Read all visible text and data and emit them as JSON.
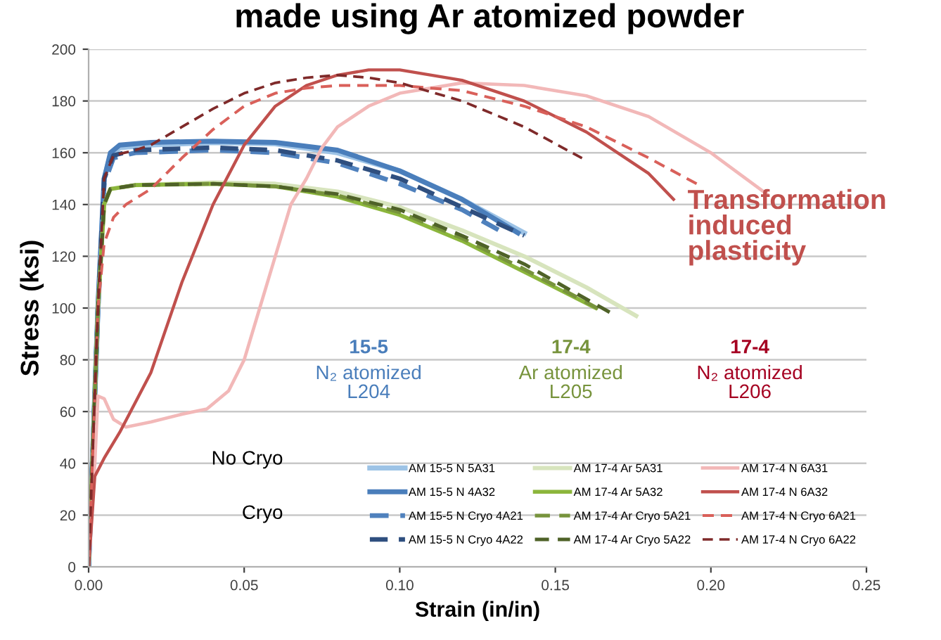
{
  "chart_data": {
    "type": "line",
    "title": "made using Ar atomized powder",
    "xlabel": "Strain (in/in)",
    "ylabel": "Stress (ksi)",
    "xlim": [
      0,
      0.25
    ],
    "xticks": [
      {
        "value": 0,
        "label": "0.00"
      },
      0.05,
      {
        "value": 0.1,
        "label": "0.10"
      },
      0.15,
      {
        "value": 0.2,
        "label": "0.20"
      },
      0.25
    ],
    "ylim": [
      0,
      200
    ],
    "yticks": [
      0,
      20,
      40,
      60,
      80,
      100,
      120,
      140,
      160,
      180,
      200
    ],
    "grid": "y",
    "legend": "bottom right",
    "annotations": [
      "15-5\nN₂ atomized\nL204",
      "17-4\nAr atomized\nL205",
      "17-4\nN₂ atomized\nL206",
      "No Cryo",
      "Cryo",
      "Transformation\ninduced\nplasticity"
    ],
    "series": [
      {
        "name": "AM 15-5 N 5A31",
        "color": "#9dc3e6",
        "line_style": "solid",
        "x": [
          0,
          0.003,
          0.005,
          0.007,
          0.01,
          0.02,
          0.04,
          0.06,
          0.08,
          0.1,
          0.12,
          0.14
        ],
        "values": [
          0,
          100,
          150,
          159,
          162,
          163,
          164,
          163.5,
          160,
          153,
          142,
          129
        ]
      },
      {
        "name": "AM 15-5 N 4A32",
        "color": "#4a7ebb",
        "line_style": "solid",
        "x": [
          0,
          0.003,
          0.005,
          0.007,
          0.01,
          0.02,
          0.04,
          0.06,
          0.08,
          0.1,
          0.12,
          0.138
        ],
        "values": [
          0,
          100,
          150,
          160,
          163,
          164,
          164.5,
          164,
          161,
          153,
          142,
          129
        ]
      },
      {
        "name": "AM 15-5 N Cryo 4A21",
        "color": "#4f81bd",
        "line_style": "dashed",
        "x": [
          0,
          0.003,
          0.005,
          0.008,
          0.015,
          0.04,
          0.06,
          0.08,
          0.1,
          0.12,
          0.135
        ],
        "values": [
          0,
          100,
          148,
          158,
          160,
          161,
          160,
          156,
          148,
          138,
          128
        ]
      },
      {
        "name": "AM 15-5 N Cryo 4A22",
        "color": "#2f4f7f",
        "line_style": "dashed",
        "x": [
          0,
          0.003,
          0.005,
          0.008,
          0.015,
          0.04,
          0.06,
          0.08,
          0.1,
          0.12,
          0.14
        ],
        "values": [
          0,
          100,
          150,
          159,
          161,
          162,
          161,
          157,
          150,
          139,
          128
        ]
      },
      {
        "name": "AM 17-4 Ar 5A31",
        "color": "#d7e4bd",
        "line_style": "solid",
        "x": [
          0,
          0.003,
          0.005,
          0.007,
          0.015,
          0.04,
          0.06,
          0.08,
          0.1,
          0.12,
          0.14,
          0.16,
          0.176
        ],
        "values": [
          0,
          100,
          140,
          146,
          147.5,
          148.5,
          148,
          145,
          139,
          130,
          120,
          108,
          97
        ]
      },
      {
        "name": "AM 17-4 Ar 5A32",
        "color": "#8cb63c",
        "line_style": "solid",
        "x": [
          0,
          0.003,
          0.005,
          0.007,
          0.015,
          0.04,
          0.06,
          0.08,
          0.1,
          0.12,
          0.14,
          0.163
        ],
        "values": [
          0,
          100,
          140,
          146,
          147.5,
          148,
          147,
          143,
          136,
          126,
          114,
          100
        ]
      },
      {
        "name": "AM 17-4 Ar Cryo 5A21",
        "color": "#77933c",
        "line_style": "dashed",
        "x": [
          0,
          0.003,
          0.005,
          0.007,
          0.015,
          0.04,
          0.06,
          0.08,
          0.1,
          0.12,
          0.14,
          0.165
        ],
        "values": [
          0,
          100,
          140,
          146,
          147.5,
          148,
          147,
          143.5,
          137,
          127,
          115,
          99
        ]
      },
      {
        "name": "AM 17-4 Ar Cryo 5A22",
        "color": "#4f6228",
        "line_style": "dashed",
        "x": [
          0,
          0.003,
          0.005,
          0.007,
          0.015,
          0.04,
          0.06,
          0.08,
          0.1,
          0.12,
          0.14,
          0.168
        ],
        "values": [
          0,
          100,
          140,
          146,
          147.5,
          148,
          147,
          144,
          138,
          128,
          117,
          98
        ]
      },
      {
        "name": "AM 17-4 N 6A31",
        "color": "#f2b8b8",
        "line_style": "solid",
        "x": [
          0,
          0.002,
          0.003,
          0.005,
          0.008,
          0.012,
          0.02,
          0.03,
          0.038,
          0.045,
          0.05,
          0.055,
          0.06,
          0.065,
          0.07,
          0.075,
          0.08,
          0.09,
          0.1,
          0.12,
          0.14,
          0.16,
          0.18,
          0.2,
          0.218
        ],
        "values": [
          0,
          40,
          66,
          65,
          57,
          54,
          56,
          59,
          61,
          68,
          80,
          100,
          120,
          140,
          150,
          162,
          170,
          178,
          183,
          187,
          186,
          182,
          174,
          160,
          144
        ]
      },
      {
        "name": "AM 17-4 N 6A32",
        "color": "#c0504d",
        "line_style": "solid",
        "x": [
          0,
          0.002,
          0.005,
          0.01,
          0.02,
          0.03,
          0.04,
          0.05,
          0.06,
          0.07,
          0.08,
          0.09,
          0.1,
          0.12,
          0.14,
          0.16,
          0.18,
          0.188
        ],
        "values": [
          0,
          35,
          42,
          52,
          75,
          110,
          140,
          163,
          178,
          186,
          190,
          192,
          192,
          188,
          180,
          168,
          152,
          142
        ]
      },
      {
        "name": "AM 17-4 N Cryo 6A21",
        "color": "#d9605a",
        "line_style": "dashed",
        "x": [
          0,
          0.003,
          0.005,
          0.008,
          0.012,
          0.02,
          0.03,
          0.04,
          0.05,
          0.06,
          0.07,
          0.08,
          0.1,
          0.12,
          0.14,
          0.16,
          0.18,
          0.197
        ],
        "values": [
          0,
          100,
          125,
          135,
          140,
          146,
          158,
          169,
          178,
          183,
          185,
          186,
          186,
          184,
          178,
          170,
          158,
          147
        ]
      },
      {
        "name": "AM 17-4 N Cryo 6A22",
        "color": "#7f2a2a",
        "line_style": "dashed",
        "x": [
          0,
          0.003,
          0.005,
          0.008,
          0.015,
          0.02,
          0.03,
          0.04,
          0.05,
          0.06,
          0.07,
          0.08,
          0.09,
          0.1,
          0.12,
          0.14,
          0.16
        ],
        "values": [
          0,
          100,
          150,
          159,
          161,
          163,
          170,
          177,
          183,
          187,
          189,
          190,
          189,
          187,
          180,
          170,
          157
        ]
      }
    ]
  }
}
